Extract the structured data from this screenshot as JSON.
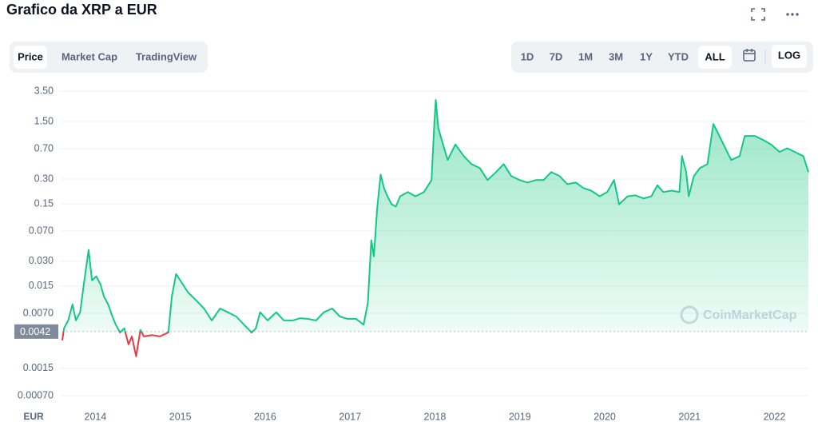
{
  "header": {
    "title": "Grafico da XRP a EUR"
  },
  "tabs": {
    "items": [
      "Price",
      "Market Cap",
      "TradingView"
    ],
    "selected": 0
  },
  "ranges": {
    "items": [
      "1D",
      "7D",
      "1M",
      "3M",
      "1Y",
      "YTD",
      "ALL"
    ],
    "selected": 6
  },
  "log_button": "LOG",
  "chart_data": {
    "type": "line",
    "log_scale": true,
    "grid": true,
    "y_unit_label": "EUR",
    "watermark": "CoinMarketCap",
    "baseline": 0.0042,
    "colors": {
      "up": "#16c784",
      "down": "#ea3943"
    },
    "xlim": [
      2013.61,
      2022.4
    ],
    "xticks": [
      2014,
      2015,
      2016,
      2017,
      2018,
      2019,
      2020,
      2021,
      2022
    ],
    "ylim": [
      0.0005,
      4.8
    ],
    "yticks": [
      {
        "value": 3.5,
        "label": "3.50"
      },
      {
        "value": 1.5,
        "label": "1.50"
      },
      {
        "value": 0.7,
        "label": "0.70"
      },
      {
        "value": 0.3,
        "label": "0.30"
      },
      0.15,
      {
        "value": 0.07,
        "label": "0.070"
      },
      {
        "value": 0.03,
        "label": "0.030"
      },
      0.015,
      {
        "value": 0.007,
        "label": "0.0070"
      },
      0.0015,
      {
        "value": 0.0007,
        "label": "0.00070"
      }
    ],
    "x": [
      2013.61,
      2013.63,
      2013.68,
      2013.73,
      2013.77,
      2013.82,
      2013.87,
      2013.92,
      2013.96,
      2014.01,
      2014.06,
      2014.1,
      2014.15,
      2014.2,
      2014.24,
      2014.29,
      2014.34,
      2014.39,
      2014.43,
      2014.48,
      2014.53,
      2014.57,
      2014.67,
      2014.76,
      2014.86,
      2014.9,
      2014.95,
      2015.0,
      2015.09,
      2015.19,
      2015.28,
      2015.37,
      2015.47,
      2015.56,
      2015.66,
      2015.75,
      2015.84,
      2015.89,
      2015.94,
      2016.03,
      2016.13,
      2016.22,
      2016.32,
      2016.41,
      2016.5,
      2016.6,
      2016.69,
      2016.79,
      2016.88,
      2016.97,
      2017.07,
      2017.16,
      2017.21,
      2017.25,
      2017.28,
      2017.32,
      2017.36,
      2017.4,
      2017.44,
      2017.49,
      2017.54,
      2017.59,
      2017.68,
      2017.77,
      2017.87,
      2017.96,
      2017.99,
      2018.01,
      2018.04,
      2018.08,
      2018.15,
      2018.24,
      2018.34,
      2018.43,
      2018.53,
      2018.62,
      2018.72,
      2018.81,
      2018.9,
      2019.0,
      2019.09,
      2019.19,
      2019.28,
      2019.37,
      2019.47,
      2019.56,
      2019.66,
      2019.75,
      2019.84,
      2019.94,
      2020.03,
      2020.11,
      2020.17,
      2020.27,
      2020.36,
      2020.46,
      2020.55,
      2020.62,
      2020.69,
      2020.79,
      2020.88,
      2020.91,
      2020.96,
      2020.99,
      2021.05,
      2021.12,
      2021.21,
      2021.28,
      2021.33,
      2021.4,
      2021.49,
      2021.59,
      2021.65,
      2021.77,
      2021.87,
      2021.96,
      2022.06,
      2022.15,
      2022.24,
      2022.34,
      2022.4
    ],
    "values": [
      0.00328,
      0.0046,
      0.00574,
      0.009,
      0.00574,
      0.0072,
      0.0176,
      0.0413,
      0.0176,
      0.0197,
      0.0157,
      0.0112,
      0.009,
      0.0064,
      0.0051,
      0.0041,
      0.0046,
      0.00293,
      0.00367,
      0.0021,
      0.0044,
      0.00367,
      0.0038,
      0.00367,
      0.0041,
      0.0112,
      0.021,
      0.0176,
      0.0126,
      0.01,
      0.008,
      0.00574,
      0.008,
      0.0072,
      0.0064,
      0.0051,
      0.0041,
      0.0046,
      0.0072,
      0.00574,
      0.0072,
      0.00574,
      0.00574,
      0.0061,
      0.006,
      0.00574,
      0.0072,
      0.008,
      0.0064,
      0.006,
      0.006,
      0.0051,
      0.0094,
      0.054,
      0.0345,
      0.133,
      0.34,
      0.233,
      0.185,
      0.148,
      0.139,
      0.185,
      0.208,
      0.185,
      0.208,
      0.291,
      1.25,
      2.74,
      1.25,
      0.89,
      0.51,
      0.79,
      0.57,
      0.455,
      0.406,
      0.291,
      0.364,
      0.455,
      0.325,
      0.291,
      0.272,
      0.291,
      0.291,
      0.364,
      0.325,
      0.26,
      0.272,
      0.233,
      0.217,
      0.185,
      0.208,
      0.291,
      0.148,
      0.185,
      0.19,
      0.174,
      0.185,
      0.252,
      0.208,
      0.217,
      0.208,
      0.57,
      0.364,
      0.185,
      0.325,
      0.406,
      0.455,
      1.4,
      1.11,
      0.79,
      0.51,
      0.57,
      1.0,
      1.0,
      0.89,
      0.79,
      0.64,
      0.71,
      0.64,
      0.57,
      0.364
    ]
  }
}
